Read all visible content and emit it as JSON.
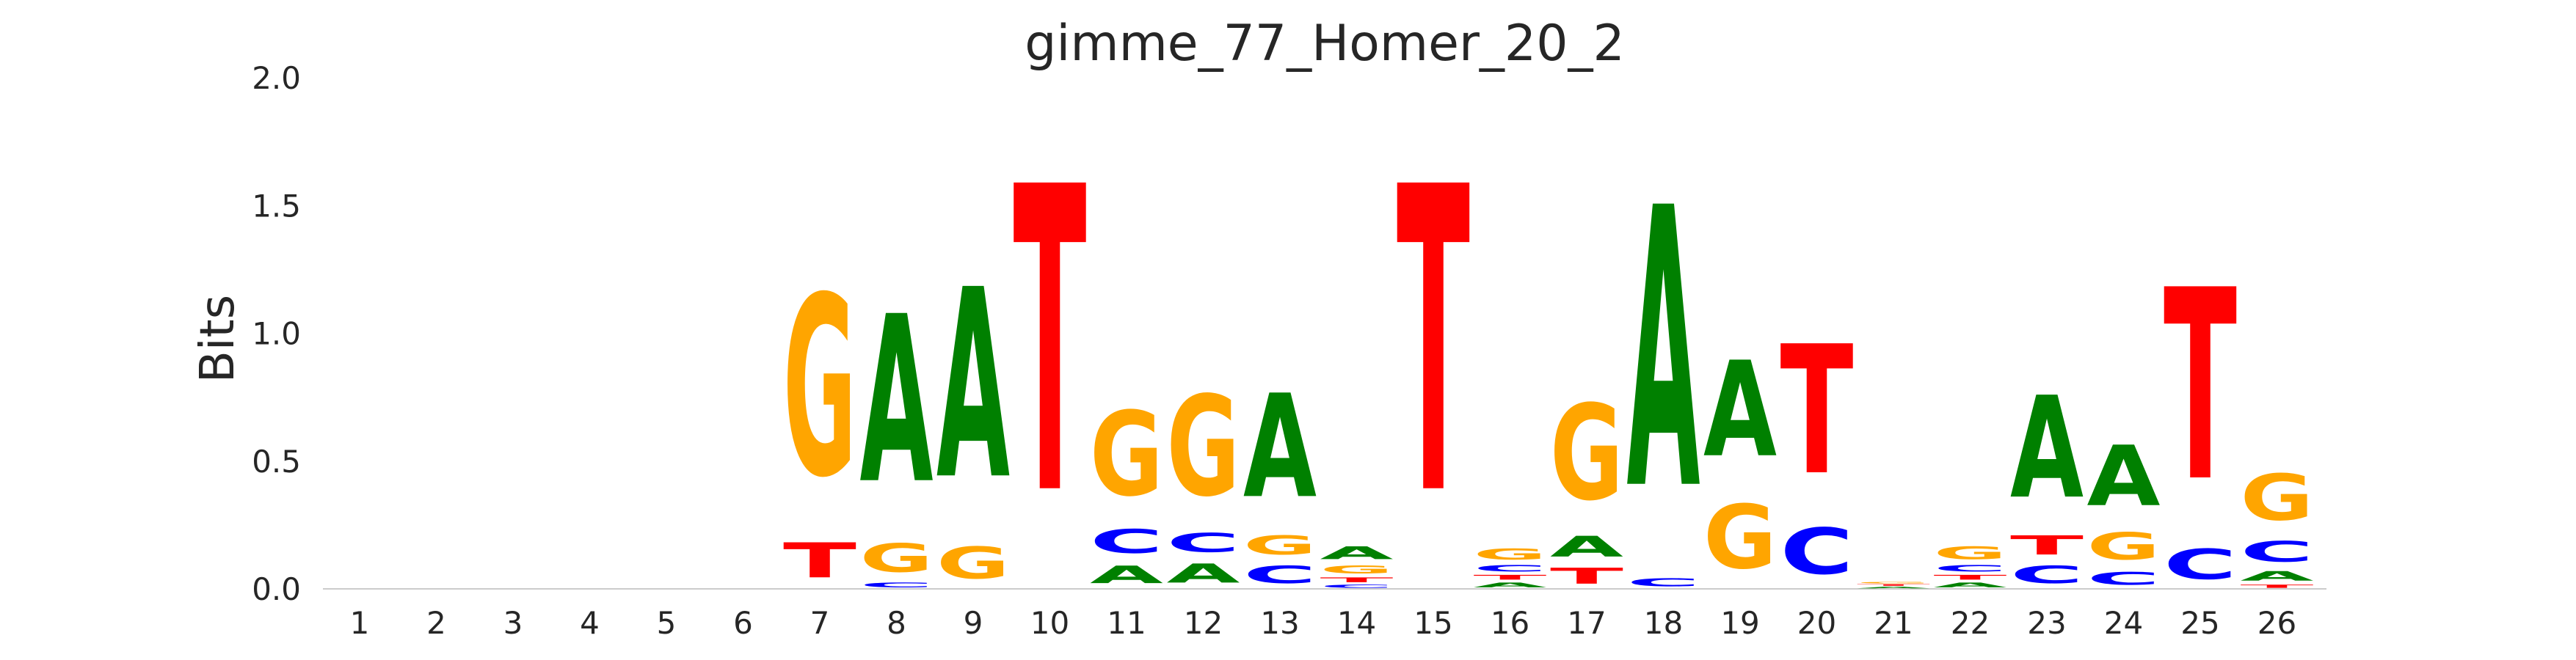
{
  "chart_data": {
    "type": "sequence-logo",
    "title": "gimme_77_Homer_20_2",
    "xlabel": "",
    "ylabel": "Bits",
    "ylim": [
      0,
      2.0
    ],
    "yticks": [
      "0.0",
      "0.5",
      "1.0",
      "1.5",
      "2.0"
    ],
    "positions": [
      "1",
      "2",
      "3",
      "4",
      "5",
      "6",
      "7",
      "8",
      "9",
      "10",
      "11",
      "12",
      "13",
      "14",
      "15",
      "16",
      "17",
      "18",
      "19",
      "20",
      "21",
      "22",
      "23",
      "24",
      "25",
      "26"
    ],
    "colors": {
      "A": "#008000",
      "C": "#0000ff",
      "G": "#ffa500",
      "T": "#ff0000"
    },
    "grid": false,
    "stacks": [
      [],
      [],
      [],
      [],
      [],
      [],
      [
        {
          "letter": "T",
          "height": 0.22
        },
        {
          "letter": "G",
          "height": 1.13
        }
      ],
      [
        {
          "letter": "C",
          "height": 0.03
        },
        {
          "letter": "G",
          "height": 0.18
        },
        {
          "letter": "A",
          "height": 1.05
        }
      ],
      [
        {
          "letter": "G",
          "height": 0.2
        },
        {
          "letter": "A",
          "height": 1.19
        }
      ],
      [
        {
          "letter": "T",
          "height": 1.92
        }
      ],
      [
        {
          "letter": "A",
          "height": 0.11
        },
        {
          "letter": "C",
          "height": 0.15
        },
        {
          "letter": "G",
          "height": 0.53
        }
      ],
      [
        {
          "letter": "A",
          "height": 0.12
        },
        {
          "letter": "C",
          "height": 0.12
        },
        {
          "letter": "G",
          "height": 0.63
        }
      ],
      [
        {
          "letter": "C",
          "height": 0.11
        },
        {
          "letter": "G",
          "height": 0.12
        },
        {
          "letter": "A",
          "height": 0.65
        }
      ],
      [
        {
          "letter": "C",
          "height": 0.02
        },
        {
          "letter": "T",
          "height": 0.03
        },
        {
          "letter": "G",
          "height": 0.05
        },
        {
          "letter": "A",
          "height": 0.08
        }
      ],
      [
        {
          "letter": "T",
          "height": 1.92
        }
      ],
      [
        {
          "letter": "A",
          "height": 0.03
        },
        {
          "letter": "T",
          "height": 0.03
        },
        {
          "letter": "C",
          "height": 0.04
        },
        {
          "letter": "G",
          "height": 0.07
        }
      ],
      [
        {
          "letter": "T",
          "height": 0.1
        },
        {
          "letter": "A",
          "height": 0.13
        },
        {
          "letter": "G",
          "height": 0.6
        }
      ],
      [
        {
          "letter": "C",
          "height": 0.05
        },
        {
          "letter": "A",
          "height": 1.76
        }
      ],
      [
        {
          "letter": "G",
          "height": 0.4
        },
        {
          "letter": "A",
          "height": 0.6
        }
      ],
      [
        {
          "letter": "C",
          "height": 0.29
        },
        {
          "letter": "T",
          "height": 0.81
        }
      ],
      [
        {
          "letter": "A",
          "height": 0.01
        },
        {
          "letter": "T",
          "height": 0.01
        },
        {
          "letter": "G",
          "height": 0.01
        }
      ],
      [
        {
          "letter": "A",
          "height": 0.03
        },
        {
          "letter": "T",
          "height": 0.03
        },
        {
          "letter": "C",
          "height": 0.04
        },
        {
          "letter": "G",
          "height": 0.08
        }
      ],
      [
        {
          "letter": "C",
          "height": 0.11
        },
        {
          "letter": "T",
          "height": 0.12
        },
        {
          "letter": "A",
          "height": 0.64
        }
      ],
      [
        {
          "letter": "C",
          "height": 0.08
        },
        {
          "letter": "G",
          "height": 0.17
        },
        {
          "letter": "A",
          "height": 0.38
        }
      ],
      [
        {
          "letter": "C",
          "height": 0.19
        },
        {
          "letter": "T",
          "height": 1.2
        }
      ],
      [
        {
          "letter": "T",
          "height": 0.02
        },
        {
          "letter": "A",
          "height": 0.06
        },
        {
          "letter": "C",
          "height": 0.13
        },
        {
          "letter": "G",
          "height": 0.29
        }
      ]
    ]
  }
}
